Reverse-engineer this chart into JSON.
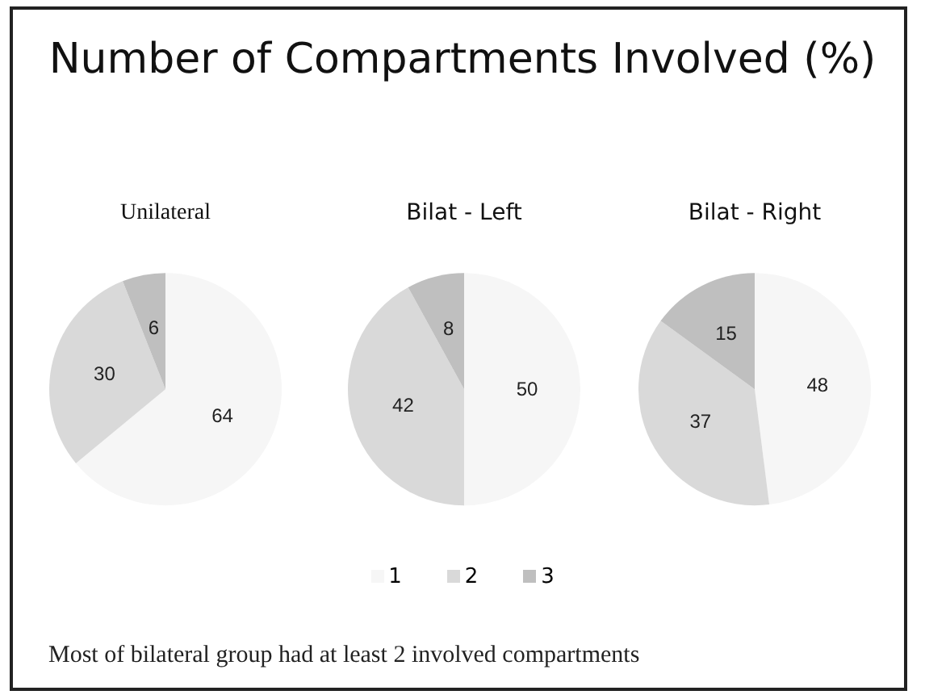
{
  "chart_data": [
    {
      "type": "pie",
      "title": "Number of Compartments Involved (%)",
      "subtitle": "Unilateral",
      "categories": [
        "1",
        "2",
        "3"
      ],
      "values": [
        64,
        30,
        6
      ],
      "colors": [
        "#f6f6f6",
        "#d9d9d9",
        "#bfbfbf"
      ],
      "data_labels": true,
      "legend": "bottom",
      "annotations": [
        "Most of bilateral group had at least 2 involved compartments"
      ]
    },
    {
      "type": "pie",
      "subtitle": "Bilat - Left",
      "categories": [
        null,
        null,
        null
      ],
      "values": [
        50,
        42,
        8
      ],
      "colors": [
        "#f6f6f6",
        "#d9d9d9",
        "#bfbfbf"
      ],
      "data_labels": true
    },
    {
      "type": "pie",
      "subtitle": "Bilat - Right",
      "categories": [
        null,
        null,
        null
      ],
      "values": [
        48,
        37,
        15
      ],
      "colors": [
        "#f6f6f6",
        "#d9d9d9",
        "#bfbfbf"
      ],
      "data_labels": true
    }
  ]
}
